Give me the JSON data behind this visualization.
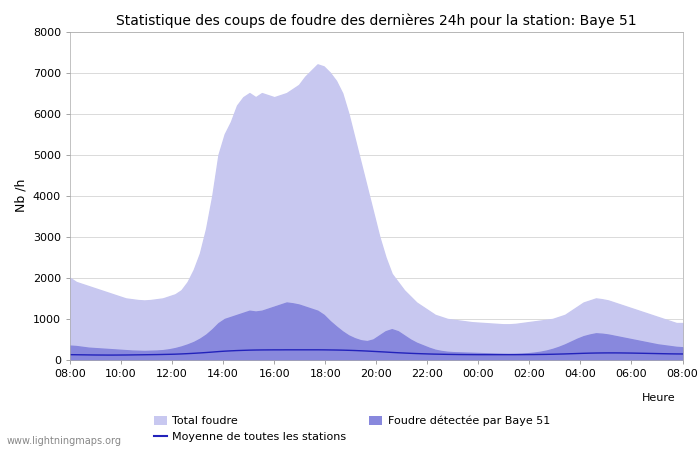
{
  "title": "Statistique des coups de foudre des dernières 24h pour la station: Baye 51",
  "ylabel": "Nb /h",
  "xlabel": "Heure",
  "watermark": "www.lightningmaps.org",
  "ylim": [
    0,
    8000
  ],
  "xlim": [
    0,
    24
  ],
  "x_ticks": [
    0,
    2,
    4,
    6,
    8,
    10,
    12,
    14,
    16,
    18,
    20,
    22,
    24
  ],
  "x_tick_labels": [
    "08:00",
    "10:00",
    "12:00",
    "14:00",
    "16:00",
    "18:00",
    "20:00",
    "22:00",
    "00:00",
    "02:00",
    "04:00",
    "06:00",
    "08:00"
  ],
  "y_ticks": [
    0,
    1000,
    2000,
    3000,
    4000,
    5000,
    6000,
    7000,
    8000
  ],
  "color_total": "#c8c8f0",
  "color_detected": "#8888dd",
  "color_mean": "#2222bb",
  "legend_total": "Total foudre",
  "legend_detected": "Foudre détectée par Baye 51",
  "legend_mean": "Moyenne de toutes les stations",
  "total_foudre": [
    2000,
    1900,
    1850,
    1800,
    1750,
    1700,
    1650,
    1600,
    1550,
    1500,
    1480,
    1460,
    1450,
    1460,
    1480,
    1500,
    1550,
    1600,
    1700,
    1900,
    2200,
    2600,
    3200,
    4000,
    5000,
    5500,
    5800,
    6200,
    6400,
    6500,
    6400,
    6500,
    6450,
    6400,
    6450,
    6500,
    6600,
    6700,
    6900,
    7050,
    7200,
    7150,
    7000,
    6800,
    6500,
    6000,
    5400,
    4800,
    4200,
    3600,
    3000,
    2500,
    2100,
    1900,
    1700,
    1550,
    1400,
    1300,
    1200,
    1100,
    1050,
    1000,
    980,
    960,
    940,
    920,
    910,
    900,
    890,
    880,
    870,
    870,
    880,
    900,
    920,
    940,
    960,
    980,
    1000,
    1050,
    1100,
    1200,
    1300,
    1400,
    1450,
    1500,
    1480,
    1450,
    1400,
    1350,
    1300,
    1250,
    1200,
    1150,
    1100,
    1050,
    1000,
    950,
    900,
    900
  ],
  "detected_baye51": [
    350,
    340,
    320,
    300,
    290,
    280,
    270,
    260,
    250,
    240,
    230,
    225,
    220,
    225,
    230,
    240,
    260,
    290,
    330,
    380,
    440,
    520,
    620,
    750,
    900,
    1000,
    1050,
    1100,
    1150,
    1200,
    1180,
    1200,
    1250,
    1300,
    1350,
    1400,
    1380,
    1350,
    1300,
    1250,
    1200,
    1100,
    950,
    820,
    700,
    600,
    530,
    480,
    460,
    500,
    600,
    700,
    750,
    700,
    600,
    500,
    420,
    360,
    300,
    250,
    220,
    200,
    190,
    185,
    180,
    175,
    170,
    165,
    160,
    155,
    150,
    148,
    150,
    155,
    165,
    180,
    200,
    230,
    270,
    320,
    380,
    450,
    520,
    580,
    620,
    650,
    640,
    620,
    590,
    560,
    530,
    500,
    470,
    440,
    410,
    380,
    360,
    340,
    320,
    310
  ],
  "mean_line": [
    130,
    128,
    126,
    124,
    122,
    121,
    120,
    120,
    121,
    122,
    124,
    126,
    128,
    130,
    132,
    135,
    138,
    142,
    148,
    155,
    163,
    172,
    182,
    193,
    205,
    215,
    223,
    230,
    235,
    240,
    243,
    245,
    246,
    247,
    247,
    248,
    248,
    248,
    248,
    248,
    248,
    247,
    245,
    243,
    240,
    236,
    231,
    225,
    218,
    210,
    202,
    194,
    185,
    177,
    170,
    163,
    157,
    152,
    147,
    143,
    140,
    137,
    135,
    133,
    132,
    131,
    130,
    130,
    130,
    130,
    130,
    130,
    130,
    131,
    132,
    133,
    135,
    137,
    140,
    144,
    148,
    153,
    158,
    163,
    167,
    170,
    172,
    173,
    173,
    172,
    170,
    168,
    165,
    162,
    159,
    156,
    153,
    150,
    148,
    147
  ],
  "n_points": 100
}
